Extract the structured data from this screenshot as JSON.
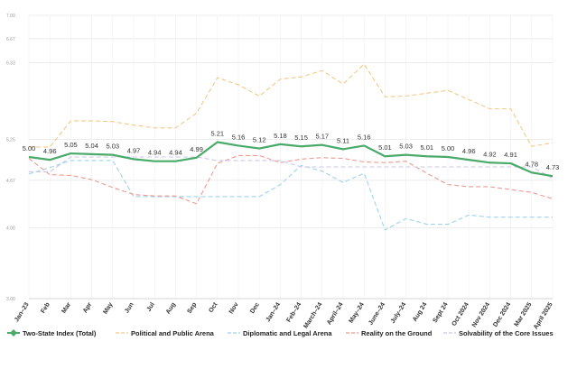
{
  "chart_data": {
    "type": "line",
    "categories": [
      "Jan–23",
      "Feb",
      "Mar",
      "Apr",
      "May",
      "Jun",
      "Jul",
      "Aug",
      "Sep",
      "Oct",
      "Nov",
      "Dec",
      "Jan–24",
      "Feb–24",
      "March–24",
      "April–24",
      "May–24",
      "June–24",
      "July–24",
      "Aug 24",
      "Sept 24",
      "Oct 2024",
      "Nov 2024",
      "Dec 2024",
      "Mar 2025",
      "April 2025"
    ],
    "ylim": [
      3.0,
      7.0
    ],
    "yticks": [
      "3.00",
      "4.00",
      "4.67",
      "5.25",
      "6.33",
      "6.67",
      "7.00"
    ],
    "ytick_values": [
      3.0,
      4.0,
      4.67,
      5.25,
      6.33,
      6.67,
      7.0
    ],
    "grid": true,
    "legend_position": "bottom",
    "series": [
      {
        "name": "Two-State Index (Total)",
        "color": "#4aaa6a",
        "style": "solid",
        "labels_shown": true,
        "values": [
          5.0,
          4.96,
          5.05,
          5.04,
          5.03,
          4.97,
          4.94,
          4.94,
          4.99,
          5.21,
          5.16,
          5.12,
          5.18,
          5.15,
          5.17,
          5.11,
          5.16,
          5.01,
          5.03,
          5.01,
          5.0,
          4.96,
          4.92,
          4.91,
          4.78,
          4.73
        ]
      },
      {
        "name": "Political and Public Arena",
        "color": "#f2c98a",
        "style": "dashed",
        "values": [
          5.14,
          5.14,
          5.51,
          5.51,
          5.5,
          5.45,
          5.41,
          5.41,
          5.62,
          6.12,
          6.02,
          5.86,
          6.1,
          6.13,
          6.22,
          6.03,
          6.31,
          5.85,
          5.86,
          5.9,
          5.94,
          5.81,
          5.68,
          5.68,
          5.15,
          5.2
        ]
      },
      {
        "name": "Diplomatic and Legal Arena",
        "color": "#9ed3ef",
        "style": "dashed",
        "values": [
          4.76,
          4.85,
          4.95,
          4.95,
          4.95,
          4.44,
          4.44,
          4.44,
          4.44,
          4.44,
          4.44,
          4.44,
          4.61,
          4.88,
          4.8,
          4.64,
          4.77,
          3.97,
          4.13,
          4.05,
          4.05,
          4.18,
          4.15,
          4.15,
          4.15,
          4.15
        ]
      },
      {
        "name": "Reality on the Ground",
        "color": "#ef9a92",
        "style": "dashed",
        "values": [
          4.98,
          4.75,
          4.74,
          4.68,
          4.57,
          4.47,
          4.45,
          4.45,
          4.34,
          4.91,
          5.02,
          5.02,
          4.92,
          4.97,
          4.99,
          4.98,
          4.93,
          4.92,
          4.94,
          4.77,
          4.61,
          4.58,
          4.58,
          4.54,
          4.5,
          4.41
        ]
      },
      {
        "name": "Solvability of the Core Issues",
        "color": "#cec8e8",
        "style": "dashed",
        "values": [
          4.79,
          4.79,
          5.0,
          5.0,
          5.0,
          5.0,
          5.0,
          5.0,
          5.0,
          4.95,
          4.95,
          4.95,
          4.95,
          4.86,
          4.86,
          4.86,
          4.86,
          4.86,
          4.86,
          4.86,
          4.86,
          4.86,
          4.86,
          4.86,
          4.86,
          4.7
        ]
      }
    ]
  }
}
